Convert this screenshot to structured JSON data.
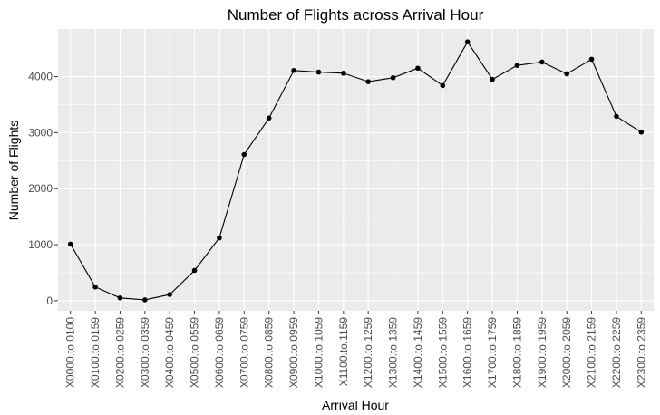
{
  "chart_data": {
    "type": "line",
    "title": "Number of Flights across Arrival Hour",
    "xlabel": "Arrival Hour",
    "ylabel": "Number of Flights",
    "categories": [
      "X0000.to.0100",
      "X0100.to.0159",
      "X0200.to.0259",
      "X0300.to.0359",
      "X0400.to.0459",
      "X0500.to.0559",
      "X0600.to.0659",
      "X0700.to.0759",
      "X0800.to.0859",
      "X0900.to.0959",
      "X1000.to.1059",
      "X1100.to.1159",
      "X1200.to.1259",
      "X1300.to.1359",
      "X1400.to.1459",
      "X1500.to.1559",
      "X1600.to.1659",
      "X1700.to.1759",
      "X1800.to.1859",
      "X1900.to.1959",
      "X2000.to.2059",
      "X2100.to.2159",
      "X2200.to.2259",
      "X2300.to.2359"
    ],
    "values": [
      1010,
      245,
      50,
      15,
      110,
      540,
      1120,
      2610,
      3260,
      4110,
      4080,
      4060,
      3910,
      3980,
      4150,
      3840,
      4620,
      3950,
      4200,
      4260,
      4050,
      4310,
      3290,
      3010
    ],
    "yticks": [
      0,
      1000,
      2000,
      3000,
      4000
    ],
    "ytick_labels": [
      "0",
      "1000",
      "2000",
      "3000",
      "4000"
    ],
    "ylim": [
      -180,
      4850
    ],
    "grid": true,
    "line_color": "#000000",
    "point_color": "#000000",
    "panel_background": "#ebebeb",
    "grid_color": "#ffffff"
  }
}
